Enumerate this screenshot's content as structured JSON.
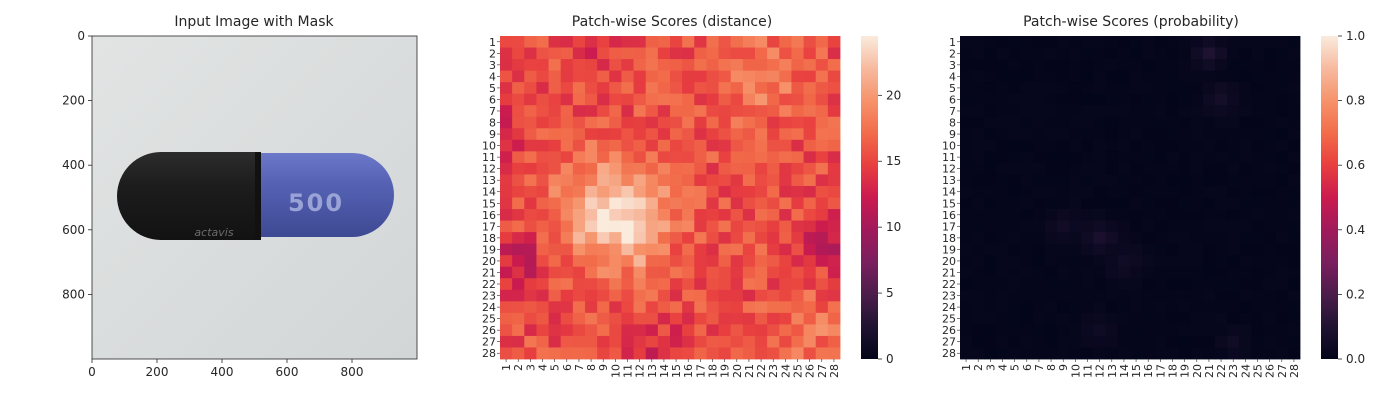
{
  "chart_data": [
    {
      "type": "image",
      "title": "Input Image with Mask",
      "xlim": [
        0,
        1000
      ],
      "ylim": [
        1000,
        0
      ],
      "xticks": [
        0,
        200,
        400,
        600,
        800
      ],
      "yticks": [
        0,
        200,
        400,
        600,
        800
      ],
      "capsule": {
        "left_cap_color": "#1f1f1f",
        "right_body_color": "#4d5aa8",
        "background_color": "#d9dcdc",
        "print_right": "500",
        "print_left": "actavis"
      }
    },
    {
      "type": "heatmap",
      "title": "Patch-wise Scores (distance)",
      "rows": 28,
      "cols": 28,
      "row_labels": [
        "1",
        "2",
        "3",
        "4",
        "5",
        "6",
        "7",
        "8",
        "9",
        "10",
        "11",
        "12",
        "13",
        "14",
        "15",
        "16",
        "17",
        "18",
        "19",
        "20",
        "21",
        "22",
        "23",
        "24",
        "25",
        "26",
        "27",
        "28"
      ],
      "col_labels": [
        "1",
        "2",
        "3",
        "4",
        "5",
        "6",
        "7",
        "8",
        "9",
        "10",
        "11",
        "12",
        "13",
        "14",
        "15",
        "16",
        "17",
        "18",
        "19",
        "20",
        "21",
        "22",
        "23",
        "24",
        "25",
        "26",
        "27",
        "28"
      ],
      "vmin": 0,
      "vmax": 24.5,
      "colorbar_ticks": [
        "0",
        "5",
        "10",
        "15",
        "20"
      ],
      "colormap": "rocket",
      "base_value": 15.5,
      "hotspots": [
        {
          "row": 16,
          "col": 10,
          "value": 23.5,
          "spread": 3.2
        },
        {
          "row": 18,
          "col": 11,
          "value": 22.5,
          "spread": 2.2
        },
        {
          "row": 4,
          "col": 22,
          "value": 18.5,
          "spread": 2.5
        },
        {
          "row": 26,
          "col": 26,
          "value": 18.0,
          "spread": 2.0
        }
      ],
      "coldspots": [
        {
          "row": 20,
          "col": 2,
          "value": 11.5,
          "spread": 1.6
        },
        {
          "row": 18,
          "col": 28,
          "value": 11.0,
          "spread": 1.6
        },
        {
          "row": 1,
          "col": 8,
          "value": 12.5,
          "spread": 1.4
        },
        {
          "row": 28,
          "col": 14,
          "value": 12.5,
          "spread": 1.6
        },
        {
          "row": 9,
          "col": 1,
          "value": 12.5,
          "spread": 1.4
        }
      ]
    },
    {
      "type": "heatmap",
      "title": "Patch-wise Scores (probability)",
      "rows": 28,
      "cols": 28,
      "row_labels": [
        "1",
        "2",
        "3",
        "4",
        "5",
        "6",
        "7",
        "8",
        "9",
        "10",
        "11",
        "12",
        "13",
        "14",
        "15",
        "16",
        "17",
        "18",
        "19",
        "20",
        "21",
        "22",
        "23",
        "24",
        "25",
        "26",
        "27",
        "28"
      ],
      "col_labels": [
        "1",
        "2",
        "3",
        "4",
        "5",
        "6",
        "7",
        "8",
        "9",
        "10",
        "11",
        "12",
        "13",
        "14",
        "15",
        "16",
        "17",
        "18",
        "19",
        "20",
        "21",
        "22",
        "23",
        "24",
        "25",
        "26",
        "27",
        "28"
      ],
      "vmin": 0,
      "vmax": 1.0,
      "colorbar_ticks": [
        "0.0",
        "0.2",
        "0.4",
        "0.6",
        "0.8",
        "1.0"
      ],
      "colormap": "rocket",
      "base_value": 0.0,
      "hotspots": [
        {
          "row": 2,
          "col": 21,
          "value": 0.09,
          "spread": 0.8
        },
        {
          "row": 6,
          "col": 22,
          "value": 0.06,
          "spread": 0.9
        },
        {
          "row": 18,
          "col": 12,
          "value": 0.07,
          "spread": 1.0
        },
        {
          "row": 17,
          "col": 9,
          "value": 0.05,
          "spread": 0.9
        },
        {
          "row": 20,
          "col": 14,
          "value": 0.04,
          "spread": 1.2
        },
        {
          "row": 26,
          "col": 12,
          "value": 0.04,
          "spread": 0.9
        },
        {
          "row": 27,
          "col": 23,
          "value": 0.04,
          "spread": 0.8
        }
      ]
    }
  ]
}
